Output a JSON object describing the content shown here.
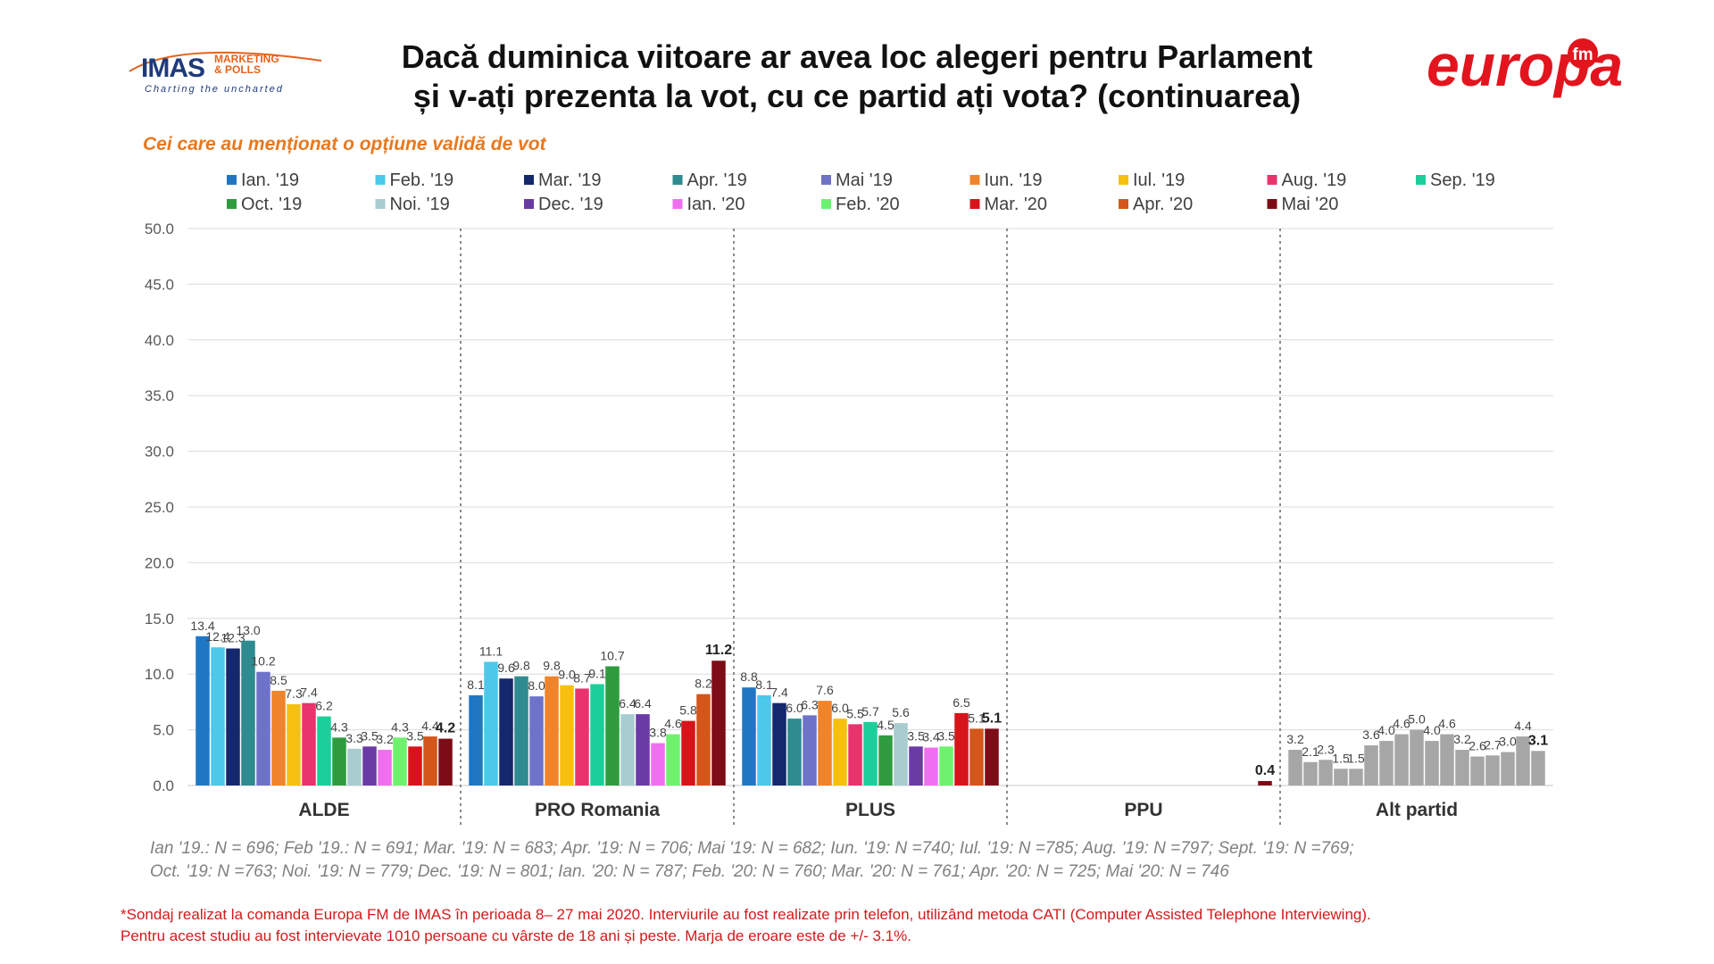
{
  "header": {
    "imas_logo": {
      "main": "IMAS",
      "side_line1": "MARKETING",
      "side_line2": "& POLLS",
      "tagline": "Charting the uncharted"
    },
    "title_line1": "Dacă duminica viitoare ar avea loc alegeri pentru Parlament",
    "title_line2": "și v-ați prezenta la vot, cu ce partid ați vota? (continuarea)",
    "europa_logo": {
      "text": "europa",
      "badge": "fm"
    }
  },
  "subtitle": "Cei care au menționat o opțiune validă de vot",
  "chart_data": {
    "type": "bar",
    "categories": [
      "ALDE",
      "PRO Romania",
      "PLUS",
      "PPU",
      "Alt partid"
    ],
    "ylim": [
      0,
      50
    ],
    "yticks": [
      "0.0",
      "5.0",
      "10.0",
      "15.0",
      "20.0",
      "25.0",
      "30.0",
      "35.0",
      "40.0",
      "45.0",
      "50.0"
    ],
    "grid": true,
    "legend_position": "top",
    "series": [
      {
        "name": "Ian. '19",
        "color": "#1f77c4",
        "values": [
          13.4,
          8.1,
          8.8,
          null,
          3.2
        ]
      },
      {
        "name": "Feb. '19",
        "color": "#4bc8ea",
        "values": [
          12.4,
          11.1,
          8.1,
          null,
          2.1
        ]
      },
      {
        "name": "Mar. '19",
        "color": "#14286b",
        "values": [
          12.3,
          9.6,
          7.4,
          null,
          2.3
        ]
      },
      {
        "name": "Apr. '19",
        "color": "#2e8b8f",
        "values": [
          13.0,
          9.8,
          6.0,
          null,
          1.5
        ]
      },
      {
        "name": "Mai '19",
        "color": "#6f72c9",
        "values": [
          10.2,
          8.0,
          6.3,
          null,
          1.5
        ]
      },
      {
        "name": "Iun. '19",
        "color": "#f0842a",
        "values": [
          8.5,
          9.8,
          7.6,
          null,
          3.6
        ]
      },
      {
        "name": "Iul. '19",
        "color": "#f7c00f",
        "values": [
          7.3,
          9.0,
          6.0,
          null,
          4.0
        ]
      },
      {
        "name": "Aug. '19",
        "color": "#e8336d",
        "values": [
          7.4,
          8.7,
          5.5,
          null,
          4.6
        ]
      },
      {
        "name": "Sep. '19",
        "color": "#1ccf9a",
        "values": [
          6.2,
          9.1,
          5.7,
          null,
          5.0
        ]
      },
      {
        "name": "Oct. '19",
        "color": "#2e9c3e",
        "values": [
          4.3,
          10.7,
          4.5,
          null,
          4.0
        ]
      },
      {
        "name": "Noi. '19",
        "color": "#a9ccd1",
        "values": [
          3.3,
          6.4,
          5.6,
          null,
          4.6
        ]
      },
      {
        "name": "Dec. '19",
        "color": "#6a3aa5",
        "values": [
          3.5,
          6.4,
          3.5,
          null,
          3.2
        ]
      },
      {
        "name": "Ian. '20",
        "color": "#f06ef0",
        "values": [
          3.2,
          3.8,
          3.4,
          null,
          2.6
        ]
      },
      {
        "name": "Feb. '20",
        "color": "#6ef26e",
        "values": [
          4.3,
          4.6,
          3.5,
          null,
          2.7
        ]
      },
      {
        "name": "Mar. '20",
        "color": "#d7141a",
        "values": [
          3.5,
          5.8,
          6.5,
          null,
          3.0
        ]
      },
      {
        "name": "Apr. '20",
        "color": "#d4561a",
        "values": [
          4.4,
          8.2,
          5.1,
          null,
          4.4
        ]
      },
      {
        "name": "Mai '20",
        "color": "#7d0c16",
        "values": [
          4.2,
          11.2,
          5.1,
          0.4,
          3.1
        ]
      }
    ],
    "other_series_color": "#a6a6a6",
    "other_category": "Alt partid"
  },
  "footnotes": {
    "sample_line1": "Ian '19.: N = 696; Feb '19.: N = 691; Mar. '19: N = 683; Apr. '19: N = 706; Mai '19: N = 682; Iun. '19: N =740; Iul. '19: N =785; Aug. '19: N =797; Sept. '19: N =769;",
    "sample_line2": "Oct. '19: N =763; Noi. '19: N = 779; Dec. '19: N = 801; Ian. '20: N = 787; Feb. '20: N = 760; Mar. '20: N = 761; Apr. '20: N = 725; Mai '20: N = 746",
    "survey_line1": "*Sondaj realizat la comanda Europa FM de IMAS în perioada  8– 27 mai 2020. Interviurile au fost realizate prin telefon, utilizând metoda CATI (Computer Assisted Telephone Interviewing).",
    "survey_line2": "Pentru acest studiu au fost intervievate 1010 persoane cu vârste de 18 ani și peste. Marja de eroare este de +/- 3.1%."
  }
}
